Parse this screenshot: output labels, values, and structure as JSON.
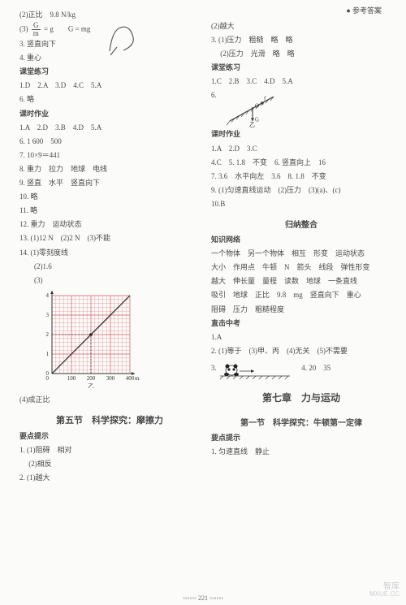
{
  "header": {
    "right": "● 参考答案"
  },
  "left": {
    "l1": "(2)正比　9.8 N/kg",
    "l2_a": "(3)",
    "l2_b": "G",
    "l2_c": "m",
    "l2_d": "= g　　G = mg",
    "l3": "3. 竖直向下",
    "l4": "4. 重心",
    "st1": "课堂练习",
    "l5": "1.D　2.A　3.D　4.C　5.A",
    "l6": "6. 略",
    "st2": "课时作业",
    "l7": "1.A　2.D　3.B　4.D　5.A",
    "l8": "6. 1 600　500",
    "l9": "7. 10×9＝441",
    "l10": "8. 重力　拉力　地球　电线",
    "l11": "9. 竖直　水平　竖直向下",
    "l12": "10. 略",
    "l13": "11. 略",
    "l14": "12. 重力　运动状态",
    "l15": "13. (1)12 N　(2)2 N　(3)不能",
    "l16": "14. (1)零刻度线",
    "l17": "　　(2)1.6",
    "l18": "　　(3)",
    "graph": {
      "ylabel": "G/N",
      "xlabel": "m/g",
      "yticks": [
        "0",
        "1",
        "2",
        "3",
        "4"
      ],
      "xticks": [
        "0",
        "100",
        "200",
        "300",
        "400"
      ],
      "bg": "#ffffff",
      "grid": "#d76b6b",
      "axis": "#333333",
      "sub": "乙"
    },
    "l19": "(4)成正比",
    "ch1": "第五节　科学探究：摩擦力",
    "st3": "要点提示",
    "l20": "1. (1)阻碍　相对",
    "l21": "　 (2)相反",
    "l22": "2. (1)越大"
  },
  "right": {
    "r1": "(2)越大",
    "r2": "3. (1)压力　粗糙　略　略",
    "r3": "　 (2)压力　光滑　略　略",
    "st1": "课堂练习",
    "r4": "1.C　2.B　3.C　4.D　5.A",
    "r5": "6.",
    "diagram": {
      "labels": {
        "f": "f",
        "O": "O",
        "G": "G",
        "sub": "乙"
      },
      "stroke": "#333333",
      "hatch": "#555555"
    },
    "st2": "课时作业",
    "r6": "1.A　2.D　3.C",
    "r7": "4.C　5. 1.8　不变　6. 竖直向上　16",
    "r8": "7. 3.6　水平向左　3.6　8. 1.8　不变",
    "r9": "9. (1)匀速直线运动　(2)压力　(3)(a)、(c)",
    "r10": "10.B",
    "ch1": "归纳整合",
    "st3": "知识网络",
    "r11": "一个物体　另一个物体　相互　形变　运动状态",
    "r12": "大小　作用点　牛顿　N　箭头　线段　弹性形变",
    "r13": "越大　伸长量　量程　读数　地球　一条直线",
    "r14": "吸引　地球　正比　9.8　mg　竖直向下　重心",
    "r15": "阻碍　压力　粗糙程度",
    "st4": "直击中考",
    "r16": "1.A",
    "r17": "2. (1)等于　(3)甲、丙　(4)无关　(5)不需要",
    "r18": "3.",
    "r18b": "4. 20　35",
    "ch2": "第七章　力与运动",
    "sec1": "第一节　科学探究：牛顿第一定律",
    "st5": "要点提示",
    "r19": "1. 匀速直线　静止"
  },
  "footer": "221",
  "watermark": {
    "a": "智库",
    "b": "MXUE.CC"
  }
}
